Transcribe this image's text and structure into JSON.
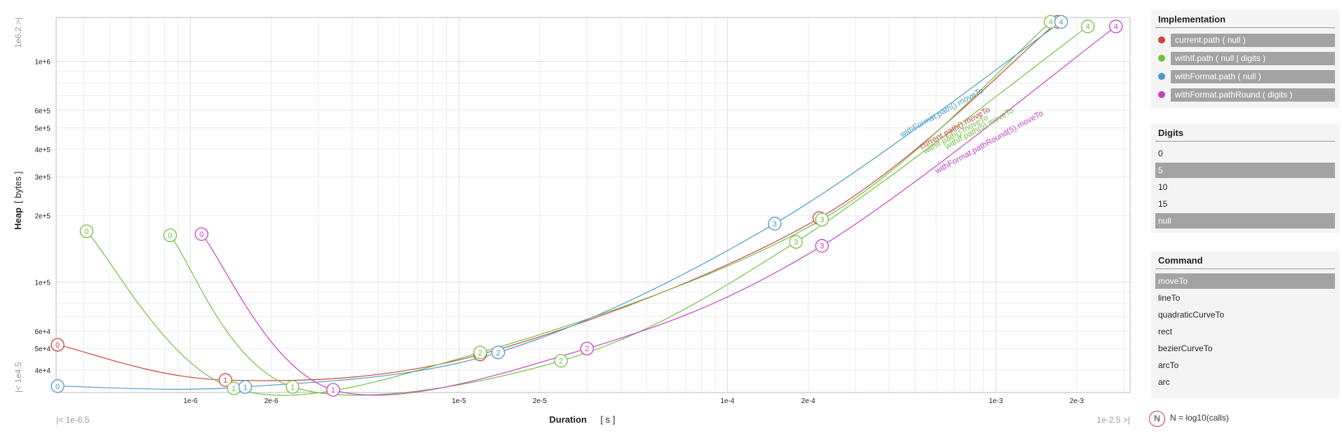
{
  "chart_data": {
    "type": "line",
    "xlabel": "Duration",
    "xunit": "[ s ]",
    "ylabel": "Heap",
    "yunit": "[ bytes ]",
    "x_scale": "log",
    "y_scale": "log",
    "xlim": [
      3.16e-07,
      0.00316
    ],
    "ylim": [
      31600,
      1580000
    ],
    "x_min_label": "|< 1e-6.5",
    "x_max_label": "1e-2.5 >|",
    "y_min_label": "|< 1e4.5",
    "y_max_label": "1e6.2 >|",
    "x_ticks": [
      {
        "v": 1e-06,
        "label": "1e-6"
      },
      {
        "v": 2e-06,
        "label": "2e-6"
      },
      {
        "v": 1e-05,
        "label": "1e-5"
      },
      {
        "v": 2e-05,
        "label": "2e-5"
      },
      {
        "v": 0.0001,
        "label": "1e-4"
      },
      {
        "v": 0.0002,
        "label": "2e-4"
      },
      {
        "v": 0.001,
        "label": "1e-3"
      },
      {
        "v": 0.002,
        "label": "2e-3"
      }
    ],
    "y_ticks": [
      {
        "v": 40000,
        "label": "4e+4"
      },
      {
        "v": 50000,
        "label": "5e+4"
      },
      {
        "v": 60000,
        "label": "6e+4"
      },
      {
        "v": 100000,
        "label": "1e+5"
      },
      {
        "v": 200000,
        "label": "2e+5"
      },
      {
        "v": 300000,
        "label": "3e+5"
      },
      {
        "v": 400000,
        "label": "4e+5"
      },
      {
        "v": 500000,
        "label": "5e+5"
      },
      {
        "v": 600000,
        "label": "6e+5"
      },
      {
        "v": 1000000,
        "label": "1e+6"
      }
    ],
    "grid": true,
    "series": [
      {
        "name": "current.path().moveTo",
        "color": "#c8453c",
        "points": [
          {
            "n": "0",
            "x": 3.2e-07,
            "y": 52000
          },
          {
            "n": "1",
            "x": 1.35e-06,
            "y": 36000
          },
          {
            "n": "2",
            "x": 1.2e-05,
            "y": 47000
          },
          {
            "n": "3",
            "x": 0.00022,
            "y": 195000
          },
          {
            "n": "4",
            "x": 0.0017,
            "y": 1510000
          }
        ]
      },
      {
        "name": "withIf.path().moveTo",
        "color": "#72c043",
        "points": [
          {
            "n": "0",
            "x": 4.1e-07,
            "y": 170000
          },
          {
            "n": "1",
            "x": 1.45e-06,
            "y": 33000
          },
          {
            "n": "2",
            "x": 1.2e-05,
            "y": 48000
          },
          {
            "n": "3",
            "x": 0.000225,
            "y": 192000
          },
          {
            "n": "4",
            "x": 0.0016,
            "y": 1510000
          }
        ]
      },
      {
        "name": "withIf.path(5).moveTo",
        "color": "#72c043",
        "points": [
          {
            "n": "0",
            "x": 8.4e-07,
            "y": 163000
          },
          {
            "n": "1",
            "x": 2.4e-06,
            "y": 33500
          },
          {
            "n": "2",
            "x": 2.4e-05,
            "y": 44000
          },
          {
            "n": "3",
            "x": 0.00018,
            "y": 152000
          },
          {
            "n": "4",
            "x": 0.0022,
            "y": 1440000
          }
        ]
      },
      {
        "name": "withFormat.path().moveTo",
        "color": "#4a9cc8",
        "points": [
          {
            "n": "0",
            "x": 3.2e-07,
            "y": 33800
          },
          {
            "n": "1",
            "x": 1.6e-06,
            "y": 33500
          },
          {
            "n": "2",
            "x": 1.4e-05,
            "y": 48000
          },
          {
            "n": "3",
            "x": 0.00015,
            "y": 184000
          },
          {
            "n": "4",
            "x": 0.00175,
            "y": 1510000
          }
        ]
      },
      {
        "name": "withFormat.pathRound(5).moveTo",
        "color": "#c443c4",
        "points": [
          {
            "n": "0",
            "x": 1.1e-06,
            "y": 165000
          },
          {
            "n": "1",
            "x": 3.4e-06,
            "y": 32500
          },
          {
            "n": "2",
            "x": 3e-05,
            "y": 50000
          },
          {
            "n": "3",
            "x": 0.000225,
            "y": 146000
          },
          {
            "n": "4",
            "x": 0.0028,
            "y": 1440000
          }
        ]
      }
    ],
    "line_labels": [
      {
        "text": "withFormat.path().moveTo",
        "color": "#4a9cc8"
      },
      {
        "text": "current.path().moveTo",
        "color": "#c8453c"
      },
      {
        "text": "withIf.path().moveTo",
        "color": "#72c043"
      },
      {
        "text": "withIf.path(5).moveTo",
        "color": "#72c043"
      },
      {
        "text": "withFormat.pathRound(5).moveTo",
        "color": "#c443c4"
      }
    ]
  },
  "implementation": {
    "title": "Implementation",
    "items": [
      {
        "label": "current.path ( null )",
        "color": "#c8453c"
      },
      {
        "label": "withIf.path ( null | digits )",
        "color": "#72c043"
      },
      {
        "label": "withFormat.path ( null )",
        "color": "#4a9cc8"
      },
      {
        "label": "withFormat.pathRound ( digits )",
        "color": "#c443c4"
      }
    ]
  },
  "digits": {
    "title": "Digits",
    "items": [
      {
        "label": "0",
        "selected": false
      },
      {
        "label": "5",
        "selected": true
      },
      {
        "label": "10",
        "selected": false
      },
      {
        "label": "15",
        "selected": false
      },
      {
        "label": "null",
        "selected": true
      }
    ]
  },
  "command": {
    "title": "Command",
    "items": [
      {
        "label": "moveTo",
        "selected": true
      },
      {
        "label": "lineTo",
        "selected": false
      },
      {
        "label": "quadraticCurveTo",
        "selected": false
      },
      {
        "label": "rect",
        "selected": false
      },
      {
        "label": "bezierCurveTo",
        "selected": false
      },
      {
        "label": "arcTo",
        "selected": false
      },
      {
        "label": "arc",
        "selected": false
      }
    ]
  },
  "legend_note": {
    "symbol": "N",
    "text": "N = log10(calls)"
  }
}
